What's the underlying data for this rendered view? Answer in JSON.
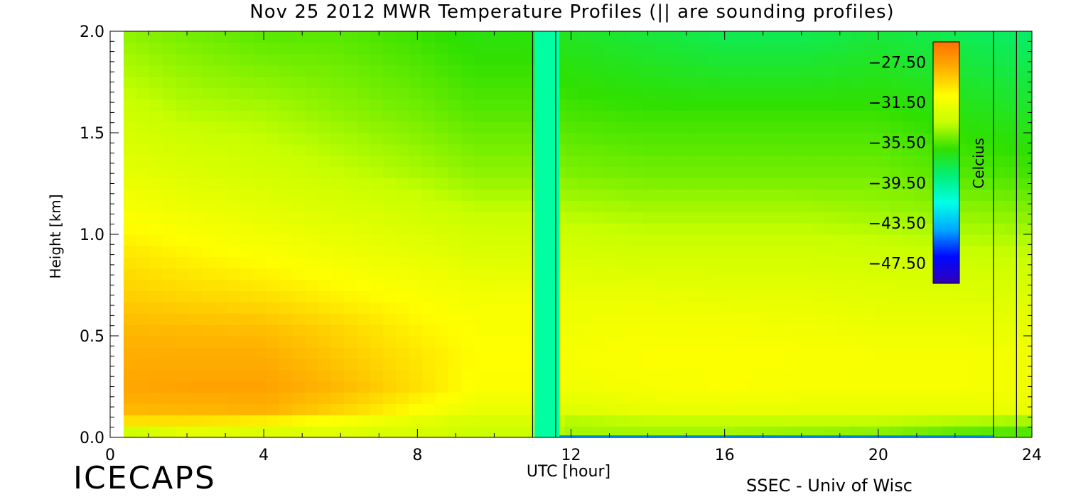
{
  "title": "Nov 25 2012 MWR Temperature Profiles (|| are sounding profiles)",
  "brand": "ICECAPS",
  "credit": "SSEC - Univ of Wisc",
  "chart_data": {
    "type": "heatmap",
    "title": "Nov 25 2012 MWR Temperature Profiles (|| are sounding profiles)",
    "xlabel": "UTC [hour]",
    "ylabel": "Height [km]",
    "xlim": [
      0,
      24
    ],
    "ylim": [
      0.0,
      2.0
    ],
    "x_ticks": [
      "0",
      "4",
      "8",
      "12",
      "16",
      "20",
      "24"
    ],
    "y_ticks": [
      "0.0",
      "0.5",
      "1.0",
      "1.5",
      "2.0"
    ],
    "data_start_hour": 0.35,
    "data_end_hour": 24,
    "missing_interval_hours": [
      11.05,
      11.7
    ],
    "sounding_profile_hours": [
      11.0,
      11.6,
      23.0,
      23.6
    ],
    "colorbar": {
      "label": "Celcius",
      "range": [
        -49.5,
        -25.5
      ],
      "ticks": [
        "-27.50",
        "-31.50",
        "-35.50",
        "-39.50",
        "-43.50",
        "-47.50"
      ],
      "colors": [
        "#3000b8",
        "#0008ff",
        "#00a8ff",
        "#00ffe8",
        "#00f07a",
        "#30e000",
        "#c8ff00",
        "#ffff00",
        "#ffb000",
        "#ff7000"
      ]
    },
    "profiles_hours": [
      0.35,
      2,
      4,
      6,
      8,
      9.5,
      11,
      12,
      14,
      16,
      18,
      20,
      22,
      24
    ],
    "profiles_heights_km": [
      0.0,
      0.05,
      0.12,
      0.25,
      0.4,
      0.55,
      0.7,
      0.9,
      1.1,
      1.3,
      1.6,
      2.0
    ],
    "temperatures_c": [
      [
        -36.0,
        -33.5,
        -33.0,
        -32.0,
        -32.5,
        -33.0,
        -33.0,
        -33.0,
        -33.0,
        -33.0,
        -33.5,
        -34.0,
        -35.0,
        -35.0
      ],
      [
        -31.0,
        -31.0,
        -32.0,
        -32.5,
        -33.0,
        -33.5,
        -33.5,
        -35.0,
        -35.0,
        -35.0,
        -35.0,
        -35.0,
        -35.5,
        -36.0
      ],
      [
        -28.5,
        -28.5,
        -28.3,
        -29.5,
        -31.0,
        -32.0,
        -32.0,
        -32.5,
        -32.0,
        -32.0,
        -32.0,
        -32.0,
        -32.0,
        -32.0
      ],
      [
        -27.8,
        -27.6,
        -27.6,
        -28.5,
        -29.8,
        -31.0,
        -31.0,
        -31.5,
        -31.2,
        -31.0,
        -31.2,
        -31.2,
        -31.2,
        -31.5
      ],
      [
        -28.0,
        -28.0,
        -28.0,
        -29.0,
        -30.0,
        -30.8,
        -30.8,
        -31.2,
        -31.0,
        -31.0,
        -31.0,
        -31.2,
        -31.2,
        -31.5
      ],
      [
        -28.5,
        -28.6,
        -28.7,
        -29.5,
        -30.5,
        -31.0,
        -31.0,
        -31.5,
        -31.3,
        -31.3,
        -31.5,
        -31.8,
        -31.8,
        -32.0
      ],
      [
        -29.2,
        -29.5,
        -29.8,
        -30.5,
        -31.0,
        -31.4,
        -31.4,
        -31.8,
        -31.8,
        -32.0,
        -32.0,
        -32.2,
        -32.4,
        -32.5
      ],
      [
        -30.0,
        -30.5,
        -31.0,
        -31.5,
        -32.0,
        -32.5,
        -32.6,
        -32.8,
        -33.0,
        -33.0,
        -33.0,
        -33.2,
        -33.4,
        -33.5
      ],
      [
        -31.0,
        -31.5,
        -32.0,
        -32.5,
        -33.0,
        -33.5,
        -33.5,
        -33.8,
        -34.0,
        -34.0,
        -34.0,
        -34.2,
        -34.4,
        -34.6
      ],
      [
        -32.0,
        -32.5,
        -33.0,
        -33.5,
        -34.0,
        -34.5,
        -34.5,
        -34.8,
        -35.0,
        -35.0,
        -35.0,
        -35.0,
        -35.5,
        -35.8
      ],
      [
        -33.2,
        -33.8,
        -34.0,
        -34.5,
        -35.0,
        -35.5,
        -35.5,
        -35.8,
        -36.0,
        -36.0,
        -36.0,
        -36.0,
        -36.5,
        -37.0
      ],
      [
        -34.5,
        -35.0,
        -35.5,
        -35.5,
        -36.0,
        -36.5,
        -36.5,
        -37.0,
        -37.5,
        -38.0,
        -38.0,
        -37.5,
        -38.0,
        -38.5
      ]
    ]
  }
}
